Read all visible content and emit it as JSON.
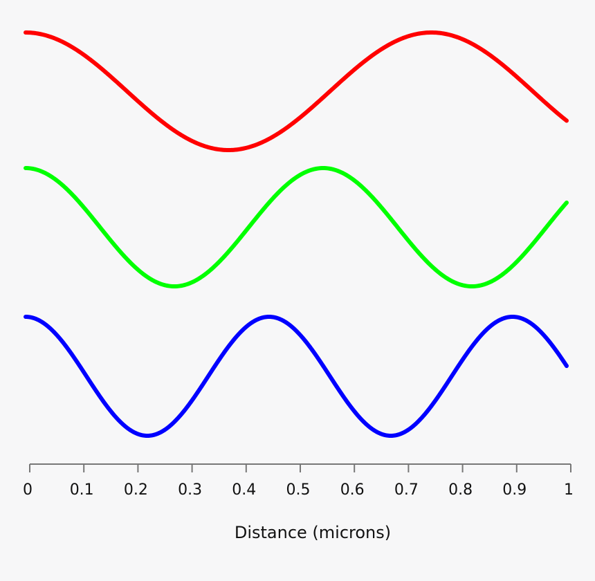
{
  "chart_data": {
    "type": "line",
    "xlabel": "Distance (microns)",
    "ylabel": "",
    "xlim": [
      0,
      1
    ],
    "xticks": [
      "0",
      "0.1",
      "0.2",
      "0.3",
      "0.4",
      "0.5",
      "0.6",
      "0.7",
      "0.8",
      "0.9",
      "1"
    ],
    "grid": false,
    "legend": "none",
    "series": [
      {
        "color": "#ff0000",
        "period_microns": 0.75,
        "amplitude": 1,
        "x_start": 0,
        "x_end": 1
      },
      {
        "color": "#00ff00",
        "period_microns": 0.55,
        "amplitude": 1,
        "x_start": 0,
        "x_end": 1
      },
      {
        "color": "#0000ff",
        "period_microns": 0.45,
        "amplitude": 1,
        "x_start": 0,
        "x_end": 1
      }
    ]
  }
}
